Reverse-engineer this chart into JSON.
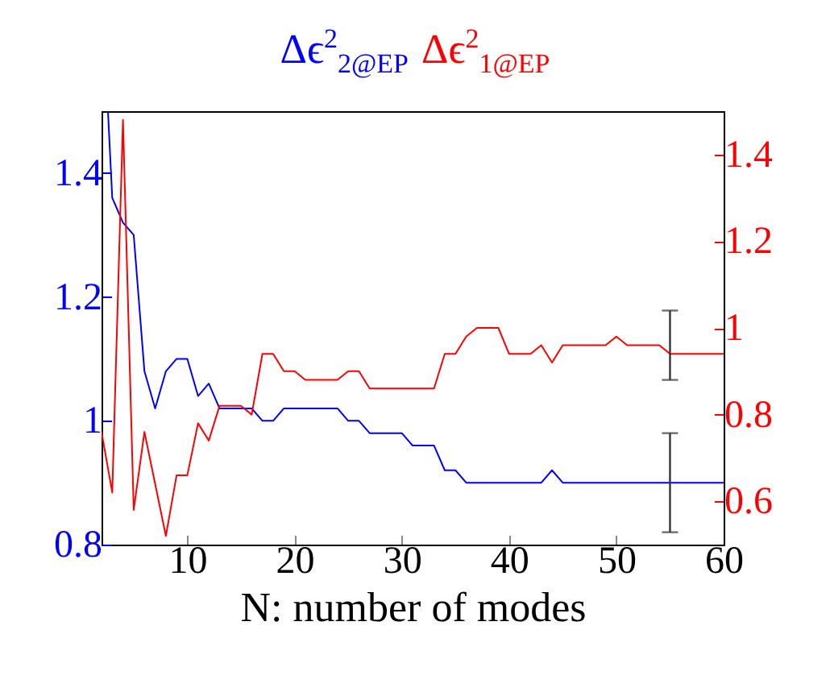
{
  "chart_data": {
    "type": "line",
    "xlabel": "N: number of modes",
    "legend": "top",
    "xlim": [
      2,
      60
    ],
    "xticks": [
      10,
      20,
      30,
      40,
      50,
      60
    ],
    "ylim": [
      0.8,
      1.5
    ],
    "yticks": [
      0.8,
      1,
      1.2,
      1.4
    ],
    "y2lim": [
      0.5,
      1.5
    ],
    "y2ticks": [
      0.6,
      0.8,
      1,
      1.2,
      1.4
    ],
    "series": [
      {
        "name": "Δϵ$^{2}$$_{2@EP}$",
        "color": "#0000ff",
        "x": [
          2.6,
          3,
          4,
          5,
          6,
          7,
          8,
          9,
          10,
          11,
          12,
          13,
          14,
          15,
          16,
          17,
          18,
          19,
          20,
          21,
          22,
          23,
          24,
          25,
          26,
          27,
          28,
          29,
          30,
          31,
          32,
          33,
          34,
          35,
          36,
          37,
          38,
          39,
          40,
          41,
          42,
          43,
          44,
          45,
          46,
          47,
          48,
          49,
          50,
          51,
          52,
          53,
          54,
          55,
          56,
          57,
          58,
          59,
          60
        ],
        "values": [
          1.5,
          1.36,
          1.32,
          1.3,
          1.08,
          1.02,
          1.08,
          1.1,
          1.1,
          1.04,
          1.06,
          1.02,
          1.02,
          1.02,
          1.02,
          1,
          1,
          1.02,
          1.02,
          1.02,
          1.02,
          1.02,
          1.02,
          1,
          1,
          0.98,
          0.98,
          0.98,
          0.98,
          0.96,
          0.96,
          0.96,
          0.92,
          0.92,
          0.9,
          0.9,
          0.9,
          0.9,
          0.9,
          0.9,
          0.9,
          0.9,
          0.92,
          0.9,
          0.9,
          0.9,
          0.9,
          0.9,
          0.9,
          0.9,
          0.9,
          0.9,
          0.9,
          0.9,
          0.9,
          0.9,
          0.9,
          0.9,
          0.9
        ],
        "errors": [
          null,
          null,
          null,
          null,
          null,
          null,
          null,
          null,
          null,
          null,
          null,
          null,
          null,
          null,
          null,
          null,
          null,
          null,
          null,
          null,
          null,
          null,
          null,
          null,
          null,
          null,
          null,
          null,
          null,
          null,
          null,
          null,
          null,
          null,
          null,
          null,
          null,
          null,
          null,
          null,
          null,
          null,
          null,
          null,
          null,
          null,
          null,
          null,
          null,
          null,
          null,
          null,
          null,
          [
            0.82,
            0.98
          ],
          null,
          null,
          null,
          null,
          null
        ]
      },
      {
        "name": "Δϵ$^{2}$$_{1@EP}$",
        "color": "#ff0000",
        "axis": "y2",
        "x": [
          2,
          3,
          4,
          5,
          6,
          7,
          8,
          9,
          10,
          11,
          12,
          13,
          14,
          15,
          16,
          17,
          18,
          19,
          20,
          21,
          22,
          23,
          24,
          25,
          26,
          27,
          28,
          29,
          30,
          31,
          32,
          33,
          34,
          35,
          36,
          37,
          38,
          39,
          40,
          41,
          42,
          43,
          44,
          45,
          46,
          47,
          48,
          49,
          50,
          51,
          52,
          53,
          54,
          55,
          56,
          57,
          58,
          59,
          60
        ],
        "values": [
          0.76,
          0.62,
          1.48,
          0.58,
          0.76,
          0.64,
          0.52,
          0.66,
          0.66,
          0.78,
          0.74,
          0.82,
          0.82,
          0.82,
          0.8,
          0.94,
          0.94,
          0.9,
          0.9,
          0.88,
          0.88,
          0.88,
          0.88,
          0.9,
          0.9,
          0.86,
          0.86,
          0.86,
          0.86,
          0.86,
          0.86,
          0.86,
          0.94,
          0.94,
          0.98,
          1,
          1,
          1,
          0.94,
          0.94,
          0.94,
          0.96,
          0.92,
          0.96,
          0.96,
          0.96,
          0.96,
          0.96,
          0.98,
          0.96,
          0.96,
          0.96,
          0.96,
          0.94,
          0.94,
          0.94,
          0.94,
          0.94,
          0.94
        ],
        "errors": [
          null,
          null,
          null,
          null,
          null,
          null,
          null,
          null,
          null,
          null,
          null,
          null,
          null,
          null,
          null,
          null,
          null,
          null,
          null,
          null,
          null,
          null,
          null,
          null,
          null,
          null,
          null,
          null,
          null,
          null,
          null,
          null,
          null,
          null,
          null,
          null,
          null,
          null,
          null,
          null,
          null,
          null,
          null,
          null,
          null,
          null,
          null,
          null,
          null,
          null,
          null,
          null,
          null,
          [
            0.88,
            1.04
          ],
          null,
          null,
          null,
          null,
          null
        ]
      }
    ]
  }
}
